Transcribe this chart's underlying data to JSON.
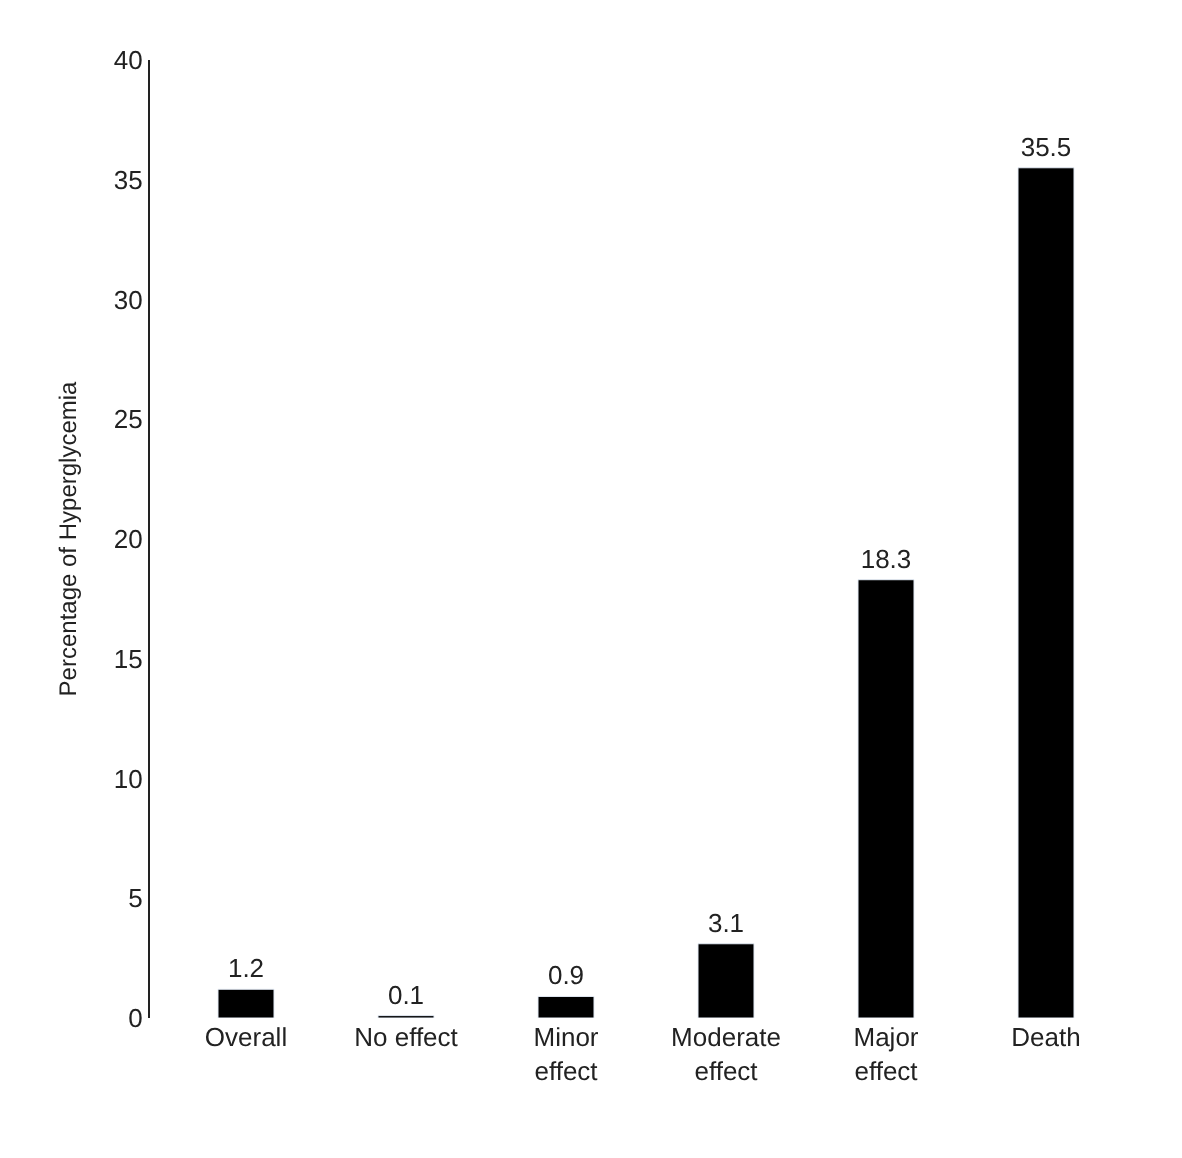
{
  "chart_data": {
    "type": "bar",
    "ylabel": "Percentage of Hyperglycemia",
    "categories": [
      "Overall",
      "No effect",
      "Minor\neffect",
      "Moderate\neffect",
      "Major\neffect",
      "Death"
    ],
    "values": [
      1.2,
      0.1,
      0.9,
      3.1,
      18.3,
      35.5
    ],
    "color": "#000000",
    "ylim": [
      0,
      40
    ],
    "yticks": [
      0,
      5,
      10,
      15,
      20,
      25,
      30,
      35,
      40
    ],
    "data_labels": true
  }
}
